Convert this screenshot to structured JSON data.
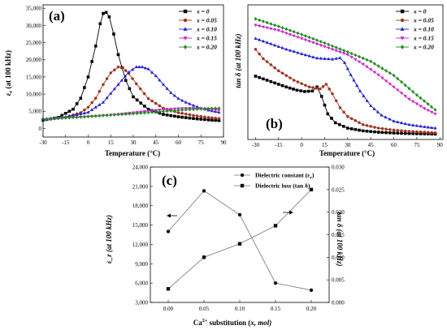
{
  "chart_data": [
    {
      "panel": "(a)",
      "type": "line",
      "xlabel": "Temperature (°C)",
      "ylabel": "ε_r (at 100 kHz)",
      "ylabel_main": "ε",
      "ylabel_sub": "r",
      "ylabel_rest": " (at  100 kHz)",
      "xlim": [
        -30,
        90
      ],
      "ylim": [
        -2500,
        36000
      ],
      "xticks": [
        -30,
        -15,
        0,
        15,
        30,
        45,
        60,
        75,
        90
      ],
      "yticks": [
        0,
        5000,
        10000,
        15000,
        20000,
        25000,
        30000,
        35000
      ],
      "ytick_labels": [
        "0",
        "5,000",
        "10,000",
        "15,000",
        "20,000",
        "25,000",
        "30,000",
        "35,000"
      ],
      "legend_position": "top-right",
      "grid": false,
      "series": [
        {
          "name": "x = 0",
          "color": "#000000",
          "marker": "square",
          "points": [
            [
              -30,
              2400
            ],
            [
              -20,
              3200
            ],
            [
              -10,
              5600
            ],
            [
              -5,
              8800
            ],
            [
              0,
              15000
            ],
            [
              5,
              24000
            ],
            [
              8,
              30500
            ],
            [
              10,
              33500
            ],
            [
              12,
              33800
            ],
            [
              14,
              32500
            ],
            [
              17,
              27500
            ],
            [
              20,
              21500
            ],
            [
              25,
              14000
            ],
            [
              30,
              9200
            ],
            [
              40,
              5600
            ],
            [
              50,
              4100
            ],
            [
              60,
              3400
            ],
            [
              70,
              2900
            ],
            [
              80,
              2500
            ],
            [
              87,
              2300
            ]
          ]
        },
        {
          "name": "x = 0.05",
          "color": "#a0341f",
          "marker": "circle",
          "points": [
            [
              -30,
              2500
            ],
            [
              -15,
              3300
            ],
            [
              -5,
              4600
            ],
            [
              0,
              6200
            ],
            [
              5,
              8800
            ],
            [
              10,
              12800
            ],
            [
              15,
              16200
            ],
            [
              20,
              17900
            ],
            [
              23,
              17700
            ],
            [
              27,
              16000
            ],
            [
              32,
              13000
            ],
            [
              40,
              8700
            ],
            [
              50,
              5900
            ],
            [
              60,
              4600
            ],
            [
              70,
              3800
            ],
            [
              80,
              3200
            ],
            [
              87,
              2900
            ]
          ]
        },
        {
          "name": "x = 0.10",
          "color": "#2222cc",
          "marker": "triangle-up",
          "points": [
            [
              -30,
              2500
            ],
            [
              -15,
              3300
            ],
            [
              0,
              4700
            ],
            [
              10,
              7600
            ],
            [
              20,
              12800
            ],
            [
              27,
              16400
            ],
            [
              32,
              17900
            ],
            [
              36,
              17900
            ],
            [
              40,
              17300
            ],
            [
              45,
              15300
            ],
            [
              50,
              12800
            ],
            [
              55,
              10400
            ],
            [
              60,
              8700
            ],
            [
              65,
              7600
            ],
            [
              70,
              6700
            ],
            [
              75,
              5900
            ],
            [
              80,
              5300
            ],
            [
              87,
              4700
            ]
          ]
        },
        {
          "name": "x = 0.15",
          "color": "#cc22cc",
          "marker": "triangle-down",
          "points": [
            [
              -30,
              2600
            ],
            [
              -15,
              3000
            ],
            [
              0,
              3400
            ],
            [
              15,
              3900
            ],
            [
              30,
              4600
            ],
            [
              45,
              5300
            ],
            [
              60,
              5800
            ],
            [
              70,
              5900
            ],
            [
              78,
              5700
            ],
            [
              87,
              5300
            ]
          ]
        },
        {
          "name": "x = 0.20",
          "color": "#228822",
          "marker": "diamond",
          "points": [
            [
              -30,
              2700
            ],
            [
              -15,
              3100
            ],
            [
              0,
              3500
            ],
            [
              15,
              3900
            ],
            [
              30,
              4300
            ],
            [
              45,
              4800
            ],
            [
              60,
              5300
            ],
            [
              75,
              5700
            ],
            [
              87,
              5900
            ]
          ]
        }
      ]
    },
    {
      "panel": "(b)",
      "type": "line",
      "xlabel": "Temperature (°C)",
      "ylabel": "tan δ (at 100 kHz)",
      "xlim": [
        -35,
        92
      ],
      "ylim": [
        0,
        0.05
      ],
      "xticks": [
        -30,
        -15,
        0,
        15,
        30,
        45,
        60,
        75,
        90
      ],
      "legend_position": "top-right",
      "grid": false,
      "series": [
        {
          "name": "x = 0",
          "color": "#000000",
          "marker": "square",
          "points": [
            [
              -30,
              0.0235
            ],
            [
              -20,
              0.0215
            ],
            [
              -10,
              0.0195
            ],
            [
              -3,
              0.0183
            ],
            [
              2,
              0.0178
            ],
            [
              7,
              0.018
            ],
            [
              10,
              0.0195
            ],
            [
              13,
              0.016
            ],
            [
              17,
              0.0095
            ],
            [
              22,
              0.0062
            ],
            [
              30,
              0.0042
            ],
            [
              40,
              0.0032
            ],
            [
              50,
              0.0027
            ],
            [
              60,
              0.0024
            ],
            [
              70,
              0.0022
            ],
            [
              80,
              0.0021
            ],
            [
              87,
              0.002
            ]
          ]
        },
        {
          "name": "x = 0.05",
          "color": "#a0341f",
          "marker": "circle",
          "points": [
            [
              -30,
              0.0335
            ],
            [
              -25,
              0.03
            ],
            [
              -15,
              0.0255
            ],
            [
              -5,
              0.022
            ],
            [
              5,
              0.0195
            ],
            [
              12,
              0.0188
            ],
            [
              16,
              0.0205
            ],
            [
              20,
              0.017
            ],
            [
              25,
              0.0118
            ],
            [
              30,
              0.0085
            ],
            [
              40,
              0.0055
            ],
            [
              50,
              0.0042
            ],
            [
              60,
              0.0035
            ],
            [
              70,
              0.003
            ],
            [
              80,
              0.0027
            ],
            [
              87,
              0.0025
            ]
          ]
        },
        {
          "name": "x = 0.10",
          "color": "#2222cc",
          "marker": "triangle-up",
          "points": [
            [
              -30,
              0.0375
            ],
            [
              -20,
              0.0355
            ],
            [
              -10,
              0.0335
            ],
            [
              0,
              0.0318
            ],
            [
              10,
              0.0302
            ],
            [
              20,
              0.0298
            ],
            [
              25,
              0.0303
            ],
            [
              28,
              0.0285
            ],
            [
              32,
              0.024
            ],
            [
              38,
              0.018
            ],
            [
              45,
              0.0125
            ],
            [
              52,
              0.009
            ],
            [
              60,
              0.0068
            ],
            [
              70,
              0.0055
            ],
            [
              80,
              0.0047
            ],
            [
              87,
              0.0042
            ]
          ]
        },
        {
          "name": "x = 0.15",
          "color": "#cc22cc",
          "marker": "triangle-down",
          "points": [
            [
              -30,
              0.0425
            ],
            [
              -15,
              0.0405
            ],
            [
              0,
              0.0375
            ],
            [
              15,
              0.0345
            ],
            [
              30,
              0.0315
            ],
            [
              40,
              0.028
            ],
            [
              50,
              0.024
            ],
            [
              60,
              0.0195
            ],
            [
              70,
              0.015
            ],
            [
              80,
              0.0115
            ],
            [
              87,
              0.0095
            ]
          ]
        },
        {
          "name": "x = 0.20",
          "color": "#228822",
          "marker": "diamond",
          "points": [
            [
              -30,
              0.0448
            ],
            [
              -15,
              0.042
            ],
            [
              0,
              0.039
            ],
            [
              15,
              0.0358
            ],
            [
              30,
              0.0325
            ],
            [
              45,
              0.029
            ],
            [
              60,
              0.0238
            ],
            [
              75,
              0.0165
            ],
            [
              87,
              0.011
            ]
          ]
        }
      ]
    },
    {
      "panel": "(c)",
      "type": "line",
      "xlabel": "Ca²⁺ substitution (x, mol)",
      "xlabel_pre": "Ca",
      "xlabel_sup": "2+",
      "xlabel_post": " substitution (",
      "xlabel_x": "x",
      "xlabel_end": ", mol)",
      "ylabel_left": "ε_r (at 100 kHz)",
      "ylabel_right": "tan δ (at 100 kHz)",
      "categories": [
        "0.00",
        "0.05",
        "0.10",
        "0.15",
        "0.20"
      ],
      "x": [
        0,
        0.05,
        0.1,
        0.15,
        0.2
      ],
      "xlim": [
        -0.025,
        0.225
      ],
      "ylim_left": [
        3000,
        24000
      ],
      "ylim_right": [
        0,
        0.03
      ],
      "yticks_left": [
        "3,000",
        "6,000",
        "9,000",
        "12,000",
        "15,000",
        "18,000",
        "21,000",
        "24,000"
      ],
      "yticks_left_values": [
        3000,
        6000,
        9000,
        12000,
        15000,
        18000,
        21000,
        24000
      ],
      "yticks_right": [
        "0.000",
        "0.005",
        "0.010",
        "0.015",
        "0.020",
        "0.025",
        "0.030"
      ],
      "yticks_right_values": [
        0,
        0.005,
        0.01,
        0.015,
        0.02,
        0.025,
        0.03
      ],
      "legend_position": "top-right",
      "series": [
        {
          "name": "Dielectric constant (ε_r)",
          "name_pre": "Dielectric constant (ε",
          "name_sub": "r",
          "name_post": ")",
          "axis": "left",
          "marker": "circle",
          "values": [
            14000,
            20300,
            16600,
            6000,
            4900
          ]
        },
        {
          "name": "Dielectric loss (tan δ)",
          "axis": "right",
          "marker": "square",
          "values": [
            0.003,
            0.01,
            0.013,
            0.017,
            0.025
          ]
        }
      ]
    }
  ]
}
